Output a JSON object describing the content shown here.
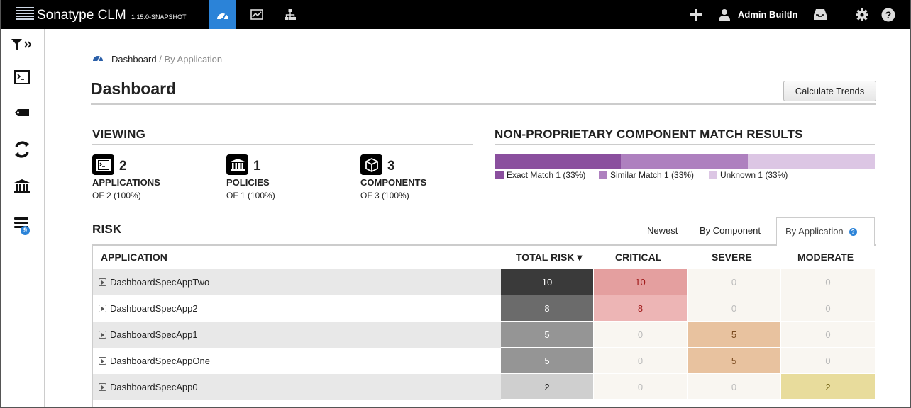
{
  "app": {
    "name": "Sonatype CLM",
    "version": "1.15.0-SNAPSHOT"
  },
  "topnav": {
    "tabs": [
      {
        "icon": "dashboard-gauge-icon",
        "active": true
      },
      {
        "icon": "reports-chart-icon",
        "active": false
      },
      {
        "icon": "organization-tree-icon",
        "active": false
      }
    ],
    "user": "Admin BuiltIn",
    "icons": [
      "add-icon",
      "user-icon",
      "inbox-icon",
      "gear-icon",
      "help-icon"
    ]
  },
  "sidebar": {
    "items": [
      "filter-expand-icon",
      "applications-terminal-icon",
      "tag-icon",
      "refresh-cycle-icon",
      "policy-building-icon",
      "stack-icon"
    ],
    "badge": "9"
  },
  "breadcrumb": {
    "root": "Dashboard",
    "separator": "/",
    "current": "By Application"
  },
  "page": {
    "title": "Dashboard",
    "calculate_button": "Calculate Trends"
  },
  "viewing": {
    "title": "VIEWING",
    "stats": [
      {
        "icon": "terminal-icon",
        "count": "2",
        "label": "APPLICATIONS",
        "of": "OF 2 (100%)"
      },
      {
        "icon": "building-icon",
        "count": "1",
        "label": "POLICIES",
        "of": "OF 1 (100%)"
      },
      {
        "icon": "cube-icon",
        "count": "3",
        "label": "COMPONENTS",
        "of": "OF 3 (100%)"
      }
    ]
  },
  "match": {
    "title": "NON-PROPRIETARY COMPONENT MATCH RESULTS",
    "segments": [
      {
        "label": "Exact Match 1 (33%)",
        "fraction": 0.333,
        "color": "#8a4f9e"
      },
      {
        "label": "Similar Match 1 (33%)",
        "fraction": 0.333,
        "color": "#ae80bf"
      },
      {
        "label": "Unknown 1 (33%)",
        "fraction": 0.334,
        "color": "#dcc6e4"
      }
    ]
  },
  "risk": {
    "title": "RISK",
    "tabs": {
      "newest": "Newest",
      "by_component": "By Component",
      "by_application": "By Application"
    },
    "columns": {
      "application": "APPLICATION",
      "total": "TOTAL RISK ▾",
      "critical": "CRITICAL",
      "severe": "SEVERE",
      "moderate": "MODERATE"
    },
    "rows": [
      {
        "name": "DashboardSpecAppTwo",
        "total": "10",
        "critical": "10",
        "severe": "0",
        "moderate": "0"
      },
      {
        "name": "DashboardSpecApp2",
        "total": "8",
        "critical": "8",
        "severe": "0",
        "moderate": "0"
      },
      {
        "name": "DashboardSpecApp1",
        "total": "5",
        "critical": "0",
        "severe": "5",
        "moderate": "0"
      },
      {
        "name": "DashboardSpecAppOne",
        "total": "5",
        "critical": "0",
        "severe": "5",
        "moderate": "0"
      },
      {
        "name": "DashboardSpecApp0",
        "total": "2",
        "critical": "0",
        "severe": "0",
        "moderate": "2"
      }
    ]
  },
  "colors": {
    "accent": "#2b83d8",
    "topbar": "#000000"
  }
}
